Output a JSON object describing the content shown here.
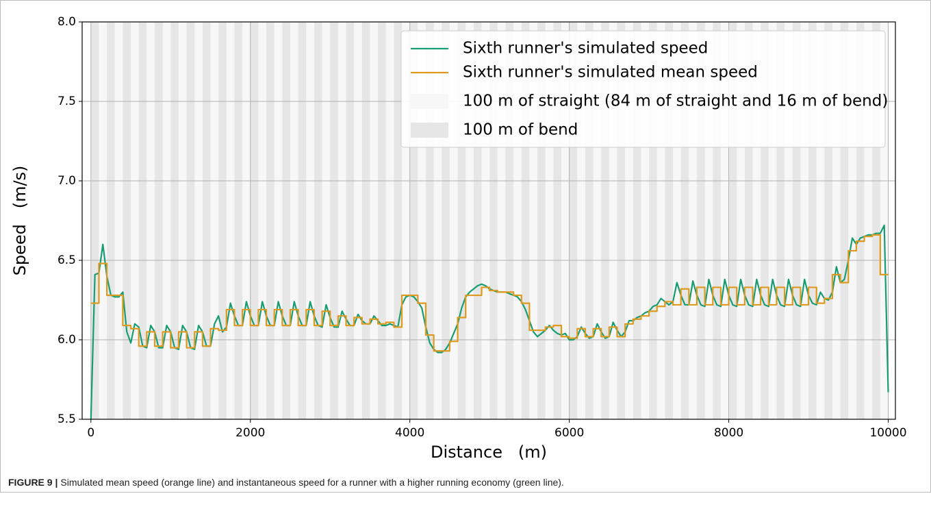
{
  "chart_data": {
    "type": "line",
    "xlabel": "Distance   (m)",
    "ylabel": "Speed   (m/s)",
    "xlim": [
      -110,
      10090
    ],
    "ylim": [
      5.5,
      8.0
    ],
    "xticks": [
      0,
      2000,
      4000,
      6000,
      8000,
      10000
    ],
    "yticks": [
      5.5,
      {
        "value": 6.0,
        "label": "6.0"
      },
      6.5,
      {
        "value": 7.0,
        "label": "7.0"
      },
      7.5,
      {
        "value": 8.0,
        "label": "8.0"
      }
    ],
    "grid": true,
    "legend": "upper right",
    "bands": [
      {
        "name": "100 m of straight (84 m of straight and 16 m of bend)",
        "color": "#f7f7f7",
        "first": 100,
        "width": 100,
        "period": 200,
        "end": 10000
      },
      {
        "name": "100 m of bend",
        "color": "#e6e6e6",
        "first": 0,
        "width": 100,
        "period": 200,
        "end": 10000
      }
    ],
    "series": [
      {
        "name": "Sixth runner's simulated speed",
        "color": "#179c74",
        "x": [
          0,
          50,
          100,
          150,
          200,
          250,
          300,
          350,
          400,
          450,
          500,
          550,
          600,
          650,
          700,
          750,
          800,
          850,
          900,
          950,
          1000,
          1050,
          1100,
          1150,
          1200,
          1250,
          1300,
          1350,
          1400,
          1450,
          1500,
          1550,
          1600,
          1650,
          1700,
          1750,
          1800,
          1850,
          1900,
          1950,
          2000,
          2050,
          2100,
          2150,
          2200,
          2250,
          2300,
          2350,
          2400,
          2450,
          2500,
          2550,
          2600,
          2650,
          2700,
          2750,
          2800,
          2850,
          2900,
          2950,
          3000,
          3050,
          3100,
          3150,
          3200,
          3250,
          3300,
          3350,
          3400,
          3450,
          3500,
          3550,
          3600,
          3650,
          3700,
          3750,
          3800,
          3850,
          3900,
          3950,
          4000,
          4050,
          4100,
          4150,
          4200,
          4250,
          4300,
          4350,
          4400,
          4450,
          4500,
          4550,
          4600,
          4650,
          4700,
          4750,
          4800,
          4850,
          4900,
          4950,
          5000,
          5050,
          5100,
          5150,
          5200,
          5250,
          5300,
          5350,
          5400,
          5450,
          5500,
          5550,
          5600,
          5650,
          5700,
          5750,
          5800,
          5850,
          5900,
          5950,
          6000,
          6050,
          6100,
          6150,
          6200,
          6250,
          6300,
          6350,
          6400,
          6450,
          6500,
          6550,
          6600,
          6650,
          6700,
          6750,
          6800,
          6850,
          6900,
          6950,
          7000,
          7050,
          7100,
          7150,
          7200,
          7250,
          7300,
          7350,
          7400,
          7450,
          7500,
          7550,
          7600,
          7650,
          7700,
          7750,
          7800,
          7850,
          7900,
          7950,
          8000,
          8050,
          8100,
          8150,
          8200,
          8250,
          8300,
          8350,
          8400,
          8450,
          8500,
          8550,
          8600,
          8650,
          8700,
          8750,
          8800,
          8850,
          8900,
          8950,
          9000,
          9050,
          9100,
          9150,
          9200,
          9250,
          9300,
          9350,
          9400,
          9450,
          9500,
          9550,
          9600,
          9650,
          9700,
          9750,
          9800,
          9850,
          9900,
          9950,
          10000
        ],
        "values": [
          5.5,
          6.41,
          6.42,
          6.6,
          6.4,
          6.28,
          6.27,
          6.27,
          6.3,
          6.05,
          5.98,
          6.1,
          6.08,
          5.96,
          5.95,
          6.09,
          6.05,
          5.95,
          5.95,
          6.09,
          6.05,
          5.95,
          5.94,
          6.09,
          6.05,
          5.95,
          5.94,
          6.09,
          6.05,
          5.96,
          5.96,
          6.1,
          6.15,
          6.05,
          6.08,
          6.23,
          6.15,
          6.09,
          6.09,
          6.24,
          6.15,
          6.09,
          6.09,
          6.24,
          6.15,
          6.09,
          6.09,
          6.24,
          6.15,
          6.09,
          6.09,
          6.24,
          6.15,
          6.09,
          6.09,
          6.24,
          6.15,
          6.09,
          6.08,
          6.22,
          6.14,
          6.08,
          6.08,
          6.18,
          6.13,
          6.09,
          6.09,
          6.16,
          6.12,
          6.1,
          6.1,
          6.15,
          6.12,
          6.09,
          6.09,
          6.1,
          6.09,
          6.08,
          6.22,
          6.27,
          6.28,
          6.27,
          6.24,
          6.2,
          6.08,
          5.98,
          5.94,
          5.92,
          5.92,
          5.94,
          5.98,
          6.04,
          6.1,
          6.2,
          6.27,
          6.3,
          6.32,
          6.34,
          6.35,
          6.34,
          6.32,
          6.31,
          6.3,
          6.3,
          6.3,
          6.29,
          6.28,
          6.27,
          6.24,
          6.19,
          6.12,
          6.05,
          6.02,
          6.04,
          6.06,
          6.09,
          6.06,
          6.04,
          6.03,
          6.04,
          6.0,
          6.0,
          6.02,
          6.08,
          6.04,
          6.01,
          6.02,
          6.1,
          6.05,
          6.01,
          6.02,
          6.11,
          6.06,
          6.02,
          6.05,
          6.12,
          6.12,
          6.14,
          6.15,
          6.17,
          6.18,
          6.21,
          6.22,
          6.26,
          6.24,
          6.22,
          6.24,
          6.36,
          6.28,
          6.22,
          6.22,
          6.37,
          6.28,
          6.22,
          6.21,
          6.38,
          6.28,
          6.22,
          6.21,
          6.38,
          6.28,
          6.22,
          6.21,
          6.38,
          6.28,
          6.22,
          6.21,
          6.38,
          6.28,
          6.22,
          6.21,
          6.38,
          6.28,
          6.22,
          6.21,
          6.38,
          6.28,
          6.22,
          6.21,
          6.38,
          6.28,
          6.23,
          6.22,
          6.3,
          6.26,
          6.25,
          6.3,
          6.46,
          6.36,
          6.38,
          6.5,
          6.64,
          6.6,
          6.64,
          6.65,
          6.66,
          6.66,
          6.67,
          6.67,
          6.72,
          5.67
        ]
      },
      {
        "name": "Sixth runner's simulated mean speed",
        "color": "#dd9a1e",
        "drawstyle": "steps-post",
        "x": [
          0,
          100,
          200,
          300,
          400,
          500,
          600,
          700,
          800,
          900,
          1000,
          1100,
          1200,
          1300,
          1400,
          1500,
          1600,
          1700,
          1800,
          1900,
          2000,
          2100,
          2200,
          2300,
          2400,
          2500,
          2600,
          2700,
          2800,
          2900,
          3000,
          3100,
          3200,
          3300,
          3400,
          3500,
          3600,
          3700,
          3800,
          3900,
          4000,
          4100,
          4200,
          4300,
          4400,
          4500,
          4600,
          4700,
          4800,
          4900,
          5000,
          5100,
          5200,
          5300,
          5400,
          5500,
          5600,
          5700,
          5800,
          5900,
          6000,
          6100,
          6200,
          6300,
          6400,
          6500,
          6600,
          6700,
          6800,
          6900,
          7000,
          7100,
          7200,
          7300,
          7400,
          7500,
          7600,
          7700,
          7800,
          7900,
          8000,
          8100,
          8200,
          8300,
          8400,
          8500,
          8600,
          8700,
          8800,
          8900,
          9000,
          9100,
          9200,
          9300,
          9400,
          9500,
          9600,
          9700,
          9800,
          9900,
          10000
        ],
        "values": [
          6.23,
          6.48,
          6.28,
          6.28,
          6.09,
          6.07,
          5.96,
          6.05,
          5.96,
          6.05,
          5.95,
          6.05,
          5.95,
          6.05,
          5.96,
          6.07,
          6.06,
          6.19,
          6.09,
          6.19,
          6.09,
          6.19,
          6.09,
          6.19,
          6.09,
          6.19,
          6.09,
          6.19,
          6.09,
          6.18,
          6.09,
          6.15,
          6.09,
          6.14,
          6.1,
          6.13,
          6.1,
          6.11,
          6.08,
          6.28,
          6.28,
          6.23,
          6.03,
          5.93,
          5.93,
          5.99,
          6.14,
          6.28,
          6.28,
          6.33,
          6.31,
          6.3,
          6.3,
          6.28,
          6.23,
          6.06,
          6.06,
          6.08,
          6.09,
          6.02,
          6.01,
          6.07,
          6.02,
          6.07,
          6.02,
          6.08,
          6.02,
          6.1,
          6.13,
          6.15,
          6.18,
          6.21,
          6.24,
          6.22,
          6.32,
          6.22,
          6.33,
          6.22,
          6.33,
          6.22,
          6.33,
          6.22,
          6.33,
          6.22,
          6.33,
          6.22,
          6.33,
          6.22,
          6.33,
          6.22,
          6.33,
          6.23,
          6.26,
          6.41,
          6.36,
          6.56,
          6.62,
          6.65,
          6.66,
          6.41,
          6.41
        ]
      }
    ]
  },
  "caption": {
    "label": "FIGURE 9 |",
    "text": "Simulated mean speed (orange line) and instantaneous speed for a runner with a higher running economy (green line)."
  }
}
